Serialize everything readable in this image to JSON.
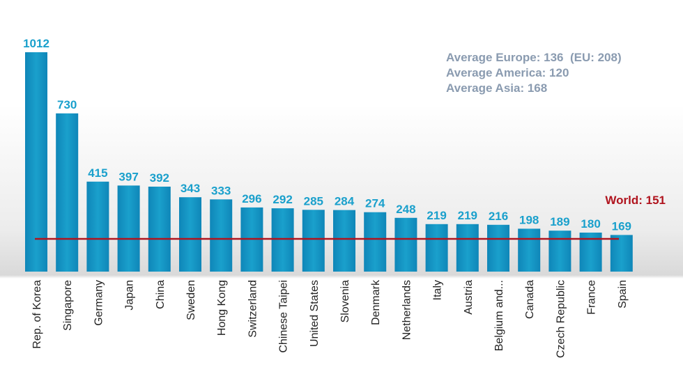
{
  "chart_data": {
    "type": "bar",
    "categories": [
      "Rep. of Korea",
      "Singapore",
      "Germany",
      "Japan",
      "China",
      "Sweden",
      "Hong Kong",
      "Switzerland",
      "Chinese Taipei",
      "United States",
      "Slovenia",
      "Denmark",
      "Netherlands",
      "Italy",
      "Austria",
      "Belgium and...",
      "Canada",
      "Czech Republic",
      "France",
      "Spain"
    ],
    "values": [
      1012,
      730,
      415,
      397,
      392,
      343,
      333,
      296,
      292,
      285,
      284,
      274,
      248,
      219,
      219,
      216,
      198,
      189,
      180,
      169
    ],
    "reference_line": {
      "value": 151,
      "label": "World: 151",
      "color": "#b0141e"
    },
    "annotations": [
      "Average Europe: 136  (EU: 208)",
      "Average America: 120",
      "Average Asia: 168"
    ],
    "bar_color": "#1aa0cc",
    "grid": false,
    "legend": "none"
  }
}
